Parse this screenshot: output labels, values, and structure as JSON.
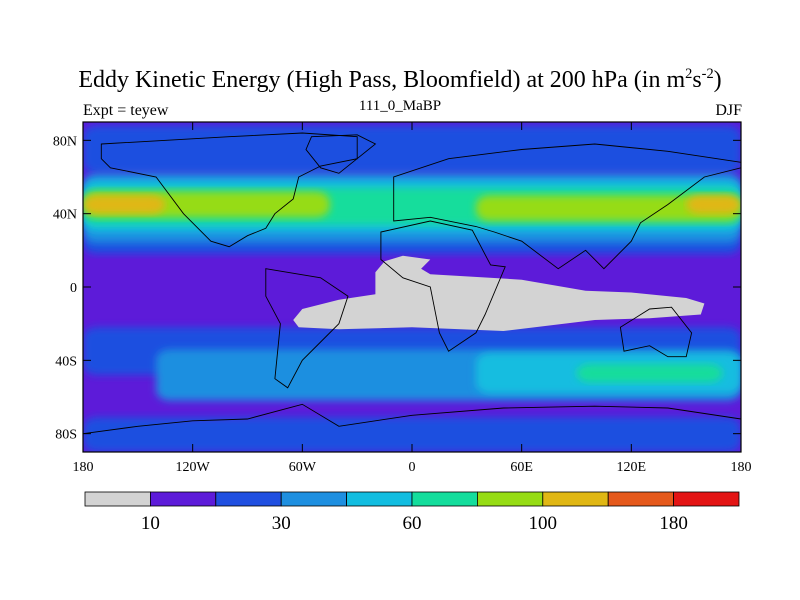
{
  "chart_data": {
    "type": "heatmap",
    "title_main": "Eddy Kinetic Energy (High Pass, Bloomfield) at 200 hPa (in m",
    "title_sup1": "2",
    "title_mid": "s",
    "title_sup2": "-2",
    "title_end": ")",
    "subtitle": "111_0_MaBP",
    "left_label": "Expt = teyew",
    "right_label": "DJF",
    "x_ticks": [
      {
        "value": -180,
        "label": "180"
      },
      {
        "value": -120,
        "label": "120W"
      },
      {
        "value": -60,
        "label": "60W"
      },
      {
        "value": 0,
        "label": "0"
      },
      {
        "value": 60,
        "label": "60E"
      },
      {
        "value": 120,
        "label": "120E"
      },
      {
        "value": 180,
        "label": "180"
      }
    ],
    "y_ticks": [
      {
        "value": 80,
        "label": "80N"
      },
      {
        "value": 40,
        "label": "40N"
      },
      {
        "value": 0,
        "label": "0"
      },
      {
        "value": -40,
        "label": "40S"
      },
      {
        "value": -80,
        "label": "80S"
      }
    ],
    "xlim": [
      -180,
      180
    ],
    "ylim": [
      -90,
      90
    ],
    "colorbar": {
      "colors": [
        "#d3d3d3",
        "#5d1bd9",
        "#1f4fe0",
        "#1e8fe0",
        "#12bde0",
        "#14dd9c",
        "#96dc14",
        "#e0b714",
        "#e5591b",
        "#e31414"
      ],
      "labels": [
        {
          "boundary": 1,
          "label": "10"
        },
        {
          "boundary": 3,
          "label": "30"
        },
        {
          "boundary": 5,
          "label": "60"
        },
        {
          "boundary": 7,
          "label": "100"
        },
        {
          "boundary": 9,
          "label": "180"
        }
      ]
    },
    "fields": [
      {
        "level": 1,
        "color": "#5d1bd9",
        "lon": [
          -180,
          180
        ],
        "lat": [
          -90,
          90
        ]
      },
      {
        "level": 2,
        "color": "#1f4fe0",
        "lon": [
          -180,
          180
        ],
        "lat": [
          62,
          88
        ]
      },
      {
        "level": 2,
        "color": "#1f4fe0",
        "lon": [
          -180,
          180
        ],
        "lat": [
          -90,
          -71
        ]
      },
      {
        "level": 2,
        "color": "#1f4fe0",
        "lon": [
          -180,
          180
        ],
        "lat": [
          -48,
          -22
        ]
      },
      {
        "level": 2,
        "color": "#1f4fe0",
        "lon": [
          -180,
          180
        ],
        "lat": [
          18,
          30
        ]
      },
      {
        "level": 3,
        "color": "#1e8fe0",
        "lon": [
          -180,
          180
        ],
        "lat": [
          24,
          62
        ]
      },
      {
        "level": 3,
        "color": "#1e8fe0",
        "lon": [
          -140,
          180
        ],
        "lat": [
          -62,
          -34
        ]
      },
      {
        "level": 4,
        "color": "#12bde0",
        "lon": [
          -180,
          180
        ],
        "lat": [
          30,
          58
        ]
      },
      {
        "level": 4,
        "color": "#12bde0",
        "lon": [
          35,
          180
        ],
        "lat": [
          -58,
          -36
        ]
      },
      {
        "level": 5,
        "color": "#14dd9c",
        "lon": [
          -180,
          180
        ],
        "lat": [
          34,
          54
        ]
      },
      {
        "level": 5,
        "color": "#14dd9c",
        "lon": [
          90,
          170
        ],
        "lat": [
          -52,
          -42
        ]
      },
      {
        "level": 6,
        "color": "#96dc14",
        "lon": [
          -180,
          -45
        ],
        "lat": [
          38,
          52
        ]
      },
      {
        "level": 6,
        "color": "#96dc14",
        "lon": [
          35,
          180
        ],
        "lat": [
          36,
          50
        ]
      },
      {
        "level": 7,
        "color": "#e0b714",
        "lon": [
          -180,
          -135
        ],
        "lat": [
          40,
          50
        ]
      },
      {
        "level": 7,
        "color": "#e0b714",
        "lon": [
          150,
          180
        ],
        "lat": [
          40,
          50
        ]
      }
    ],
    "missing_region": {
      "color": "#d3d3d3",
      "outline": [
        [
          -65,
          -18
        ],
        [
          -60,
          -12
        ],
        [
          -40,
          -7
        ],
        [
          -20,
          -4
        ],
        [
          -20,
          8
        ],
        [
          -15,
          14
        ],
        [
          -5,
          17
        ],
        [
          10,
          15
        ],
        [
          5,
          10
        ],
        [
          10,
          7
        ],
        [
          60,
          4
        ],
        [
          95,
          -2
        ],
        [
          120,
          -3
        ],
        [
          150,
          -6
        ],
        [
          160,
          -9
        ],
        [
          158,
          -15
        ],
        [
          130,
          -17
        ],
        [
          100,
          -18
        ],
        [
          50,
          -24
        ],
        [
          0,
          -22
        ],
        [
          -40,
          -23
        ],
        [
          -62,
          -22
        ]
      ]
    },
    "continents": [
      {
        "name": "north-america",
        "outline": [
          [
            -170,
            78
          ],
          [
            -100,
            82
          ],
          [
            -60,
            84
          ],
          [
            -30,
            82
          ],
          [
            -30,
            70
          ],
          [
            -50,
            66
          ],
          [
            -62,
            60
          ],
          [
            -65,
            48
          ],
          [
            -75,
            40
          ],
          [
            -80,
            32
          ],
          [
            -90,
            28
          ],
          [
            -100,
            22
          ],
          [
            -110,
            25
          ],
          [
            -125,
            40
          ],
          [
            -140,
            60
          ],
          [
            -165,
            65
          ],
          [
            -170,
            70
          ]
        ]
      },
      {
        "name": "south-america",
        "outline": [
          [
            -80,
            10
          ],
          [
            -50,
            5
          ],
          [
            -35,
            -5
          ],
          [
            -40,
            -20
          ],
          [
            -50,
            -30
          ],
          [
            -60,
            -40
          ],
          [
            -68,
            -55
          ],
          [
            -75,
            -50
          ],
          [
            -72,
            -20
          ],
          [
            -80,
            -5
          ]
        ]
      },
      {
        "name": "eurasia",
        "outline": [
          [
            -10,
            36
          ],
          [
            -10,
            60
          ],
          [
            20,
            70
          ],
          [
            60,
            75
          ],
          [
            100,
            78
          ],
          [
            140,
            74
          ],
          [
            180,
            68
          ],
          [
            180,
            65
          ],
          [
            160,
            60
          ],
          [
            140,
            45
          ],
          [
            125,
            35
          ],
          [
            120,
            25
          ],
          [
            105,
            10
          ],
          [
            95,
            20
          ],
          [
            80,
            10
          ],
          [
            60,
            25
          ],
          [
            45,
            30
          ],
          [
            35,
            33
          ],
          [
            10,
            38
          ]
        ]
      },
      {
        "name": "africa",
        "outline": [
          [
            -17,
            30
          ],
          [
            10,
            36
          ],
          [
            33,
            31
          ],
          [
            43,
            12
          ],
          [
            51,
            11
          ],
          [
            40,
            -15
          ],
          [
            35,
            -25
          ],
          [
            20,
            -35
          ],
          [
            15,
            -25
          ],
          [
            10,
            0
          ],
          [
            -5,
            5
          ],
          [
            -17,
            15
          ]
        ]
      },
      {
        "name": "australia",
        "outline": [
          [
            114,
            -22
          ],
          [
            130,
            -12
          ],
          [
            142,
            -11
          ],
          [
            153,
            -25
          ],
          [
            150,
            -38
          ],
          [
            140,
            -38
          ],
          [
            130,
            -32
          ],
          [
            116,
            -35
          ]
        ]
      },
      {
        "name": "antarctica",
        "outline": [
          [
            -180,
            -80
          ],
          [
            -150,
            -76
          ],
          [
            -120,
            -73
          ],
          [
            -90,
            -72
          ],
          [
            -60,
            -64
          ],
          [
            -40,
            -76
          ],
          [
            0,
            -70
          ],
          [
            50,
            -66
          ],
          [
            100,
            -65
          ],
          [
            140,
            -66
          ],
          [
            180,
            -72
          ],
          [
            180,
            -90
          ],
          [
            -180,
            -90
          ]
        ]
      },
      {
        "name": "greenland",
        "outline": [
          [
            -55,
            82
          ],
          [
            -30,
            83
          ],
          [
            -20,
            78
          ],
          [
            -40,
            62
          ],
          [
            -50,
            65
          ],
          [
            -58,
            75
          ]
        ]
      }
    ]
  }
}
